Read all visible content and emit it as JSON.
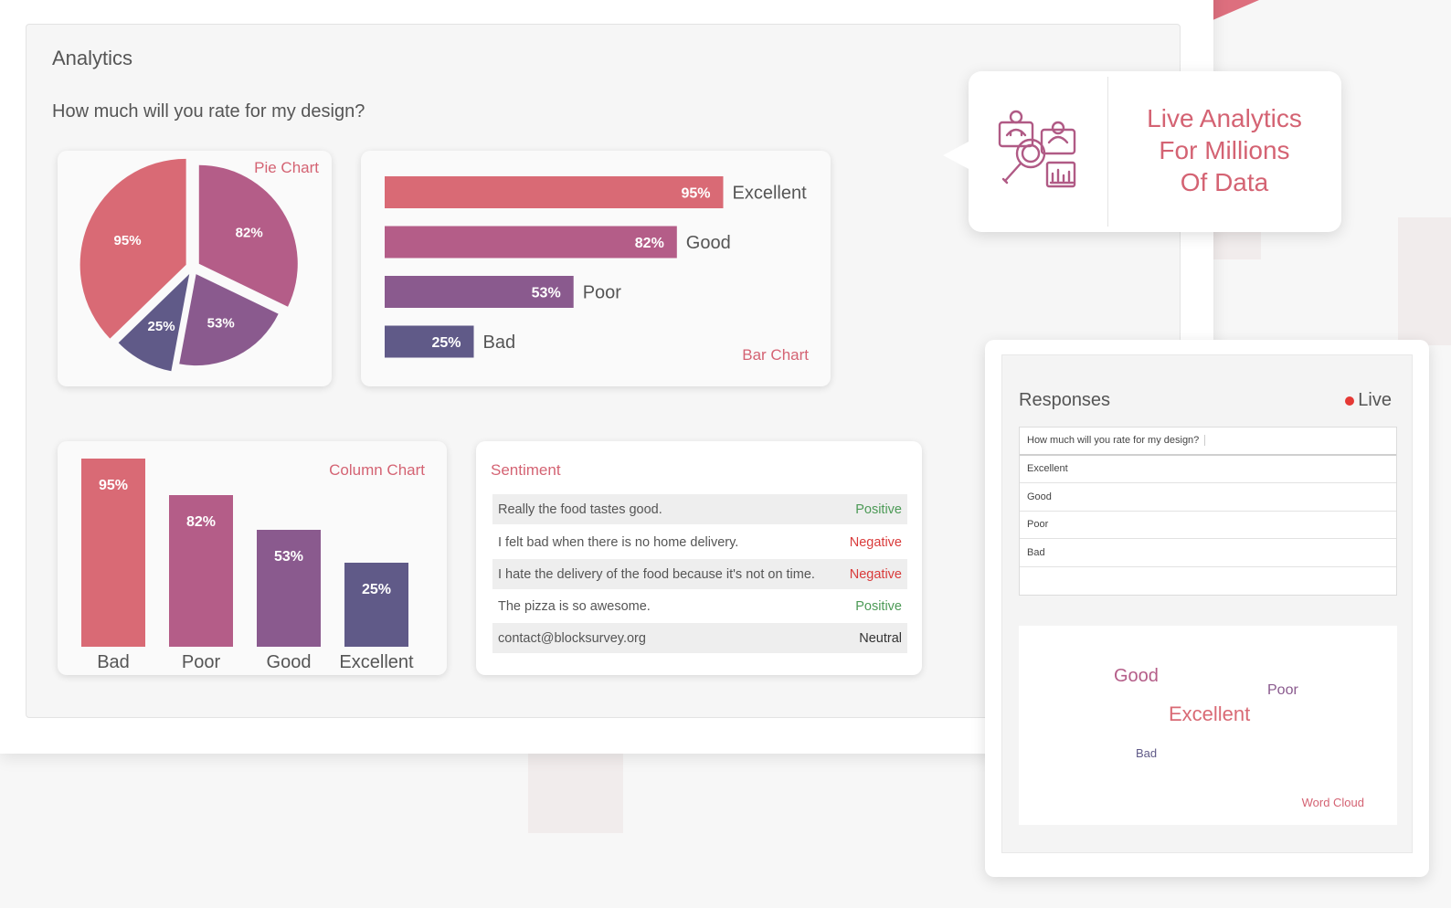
{
  "analytics": {
    "title": "Analytics",
    "question": "How much will you rate for my design?"
  },
  "colors": {
    "c1": "#d96a75",
    "c2": "#b45d88",
    "c3": "#8a5a8e",
    "c4": "#605a88",
    "accent": "#d46373",
    "positive": "#4c9a56",
    "negative": "#d93b3b"
  },
  "pie_chart": {
    "title": "Pie Chart",
    "chart_data": {
      "type": "pie",
      "slices": [
        {
          "label": "95%",
          "value": 95
        },
        {
          "label": "82%",
          "value": 82
        },
        {
          "label": "53%",
          "value": 53
        },
        {
          "label": "25%",
          "value": 25
        }
      ]
    }
  },
  "bar_chart": {
    "title": "Bar Chart",
    "chart_data": {
      "type": "bar",
      "orientation": "horizontal",
      "categories": [
        "Excellent",
        "Good",
        "Poor",
        "Bad"
      ],
      "values": [
        95,
        82,
        53,
        25
      ],
      "value_labels": [
        "95%",
        "82%",
        "53%",
        "25%"
      ]
    }
  },
  "column_chart": {
    "title": "Column Chart",
    "chart_data": {
      "type": "bar",
      "orientation": "vertical",
      "categories": [
        "Bad",
        "Poor",
        "Good",
        "Excellent"
      ],
      "values": [
        95,
        82,
        53,
        25
      ],
      "value_labels": [
        "95%",
        "82%",
        "53%",
        "25%"
      ]
    }
  },
  "sentiment": {
    "title": "Sentiment",
    "rows": [
      {
        "text": "Really the food tastes good.",
        "label": "Positive"
      },
      {
        "text": "I felt bad when there is no home delivery.",
        "label": "Negative"
      },
      {
        "text": "I hate the delivery of the food because it's not on time.",
        "label": "Negative"
      },
      {
        "text": "The pizza is so awesome.",
        "label": "Positive"
      },
      {
        "text": "contact@blocksurvey.org",
        "label": "Neutral"
      }
    ]
  },
  "callout": {
    "icon": "analytics-search-icon",
    "line1": "Live Analytics",
    "line2": "For Millions",
    "line3": "Of Data"
  },
  "responses": {
    "title": "Responses",
    "live_label": "Live",
    "table_header": "How much will you rate for my design?",
    "rows": [
      "Excellent",
      "Good",
      "Poor",
      "Bad",
      ""
    ],
    "word_cloud": {
      "title": "Word Cloud",
      "words": [
        "Good",
        "Poor",
        "Excellent",
        "Bad"
      ]
    }
  }
}
